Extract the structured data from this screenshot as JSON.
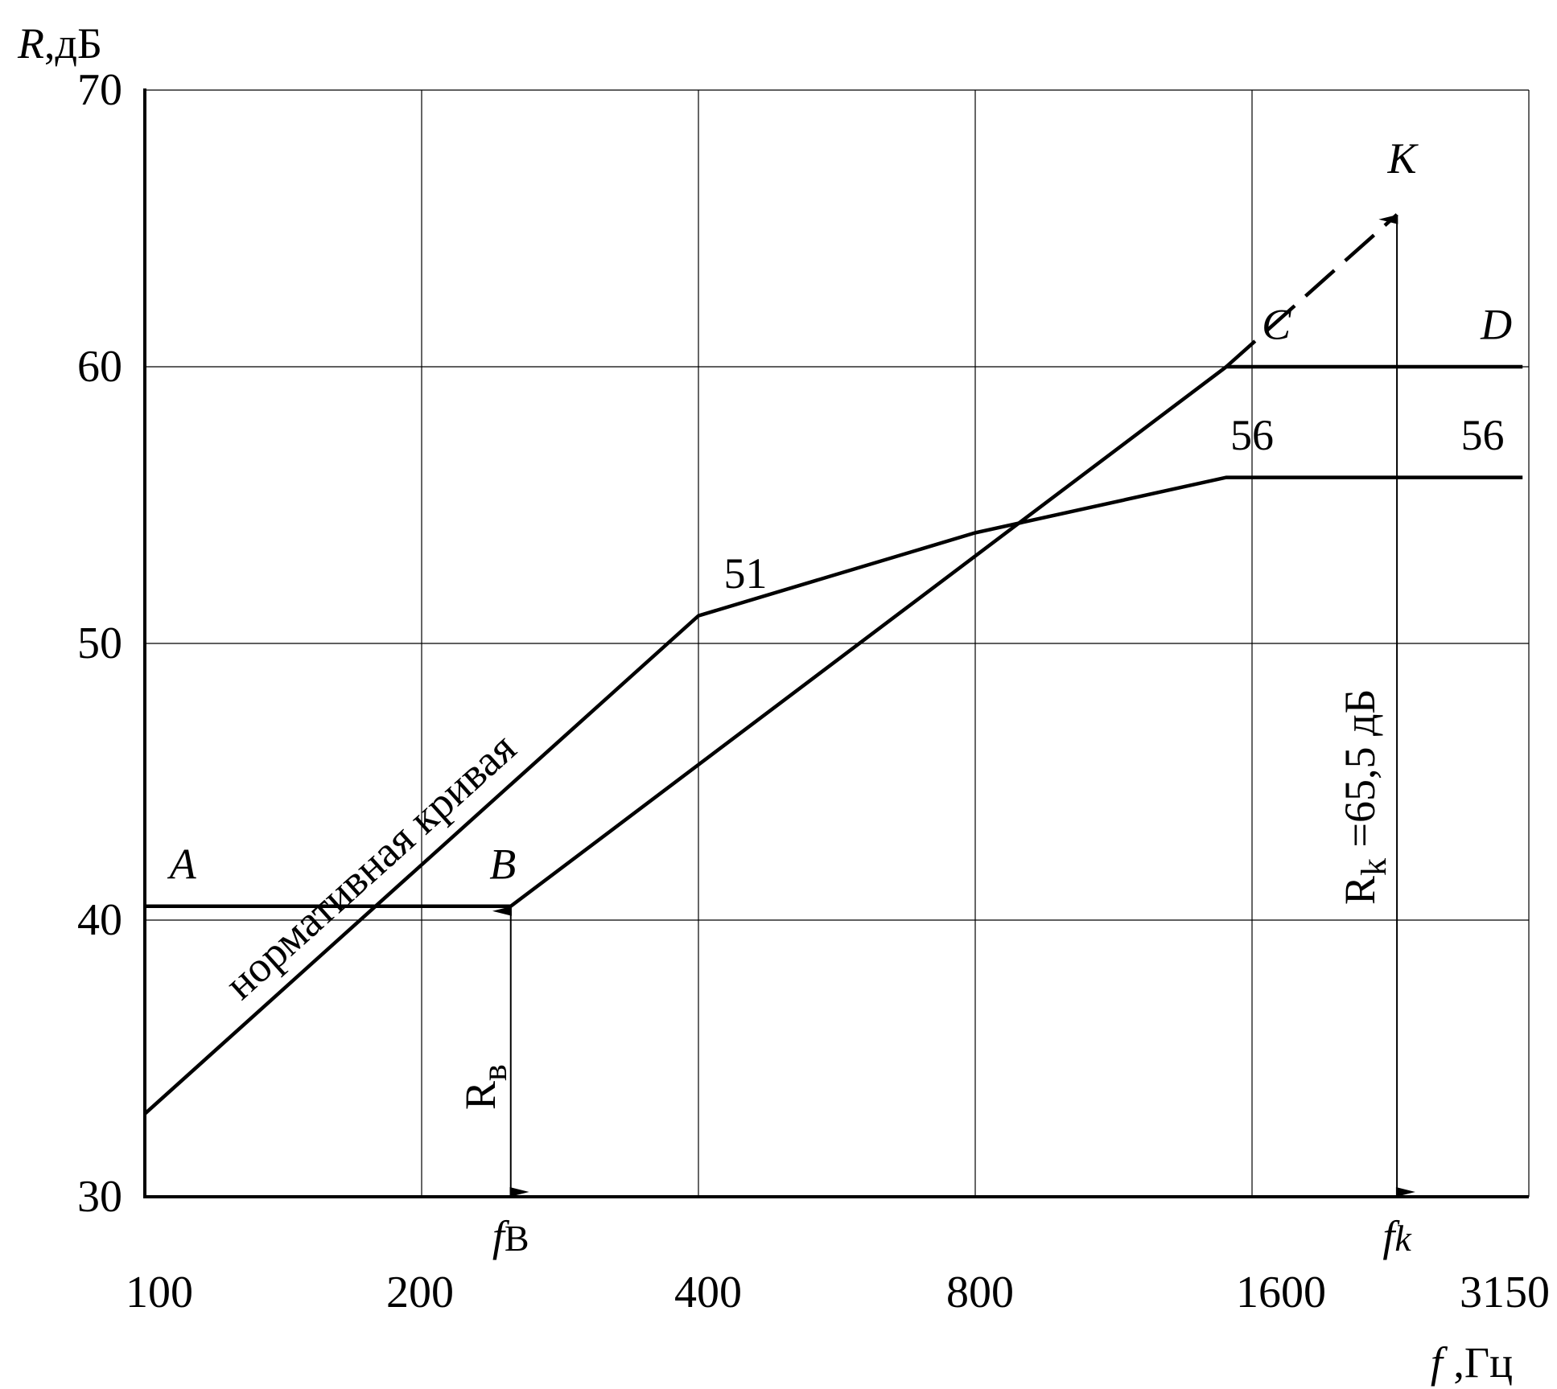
{
  "chart_data": {
    "type": "line",
    "ylabel": {
      "var": "R",
      "unit": ",дБ"
    },
    "xlabel": {
      "var": "f",
      "unit": " ,Гц"
    },
    "ylim": [
      30,
      70
    ],
    "y_ticks": [
      "30",
      "40",
      "50",
      "60",
      "70"
    ],
    "x_scale": "log2",
    "x_ticks": [
      "100",
      "200",
      "400",
      "800",
      "1600",
      "3150"
    ],
    "grid": true,
    "series": [
      {
        "name": "нормативная кривая",
        "points": [
          [
            100,
            33
          ],
          [
            400,
            51
          ],
          [
            800,
            54
          ],
          [
            1500,
            56
          ],
          [
            3150,
            56
          ]
        ]
      },
      {
        "name": "",
        "points": [
          [
            100,
            40.5
          ],
          [
            250,
            40.5
          ],
          [
            1500,
            60
          ],
          [
            3150,
            60
          ]
        ],
        "dashed_extension": [
          [
            1500,
            60
          ],
          [
            2300,
            65.5
          ]
        ]
      }
    ],
    "annotations": {
      "normative_label": "нормативная кривая",
      "point_A": {
        "text": "A",
        "x": 110,
        "y": 41.5
      },
      "point_B": {
        "text": "B",
        "x": 245,
        "y": 41.5
      },
      "point_C": {
        "text": "C",
        "x": 1700,
        "y": 61
      },
      "point_D": {
        "text": "D",
        "x": 2950,
        "y": 61
      },
      "point_K": {
        "text": "K",
        "x": 2330,
        "y": 67
      },
      "value_51": {
        "text": "51",
        "x": 450,
        "y": 52
      },
      "value_56_left": {
        "text": "56",
        "x": 1600,
        "y": 57
      },
      "value_56_right": {
        "text": "56",
        "x": 2850,
        "y": 57
      },
      "fb": {
        "x": 250,
        "y_top": 40.5,
        "label_main": "f",
        "label_sub": "В"
      },
      "fk": {
        "x": 2300,
        "y_top": 65.5,
        "label_main": "f",
        "label_sub": "k"
      },
      "rb_label": {
        "main": "R",
        "sub": "в"
      },
      "rk_label": {
        "main": "R",
        "sub": "k",
        "rest": " =65,5 дБ"
      }
    }
  }
}
